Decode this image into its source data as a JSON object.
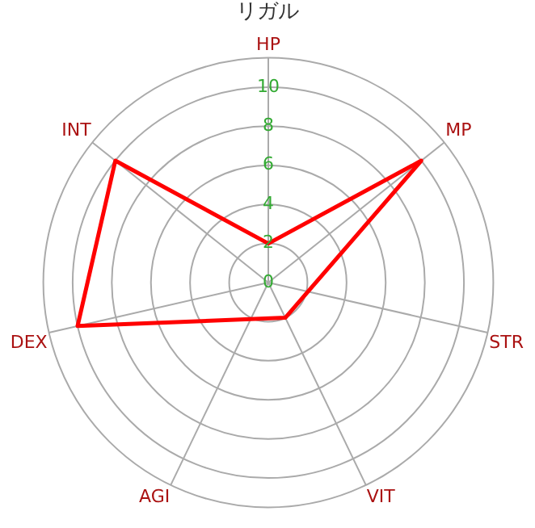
{
  "chart_data": {
    "type": "radar",
    "title": "リガル",
    "categories": [
      "HP",
      "MP",
      "STR",
      "VIT",
      "AGI",
      "DEX",
      "INT"
    ],
    "series": [
      {
        "color": "#ff0000",
        "values": [
          2,
          10,
          null,
          2,
          null,
          10,
          10
        ]
      }
    ],
    "ylim": [
      0,
      11.5
    ],
    "yticks": [
      0,
      2,
      4,
      6,
      8,
      10
    ],
    "grid": true,
    "legend": false,
    "marker": "none",
    "line_style": "solid"
  }
}
